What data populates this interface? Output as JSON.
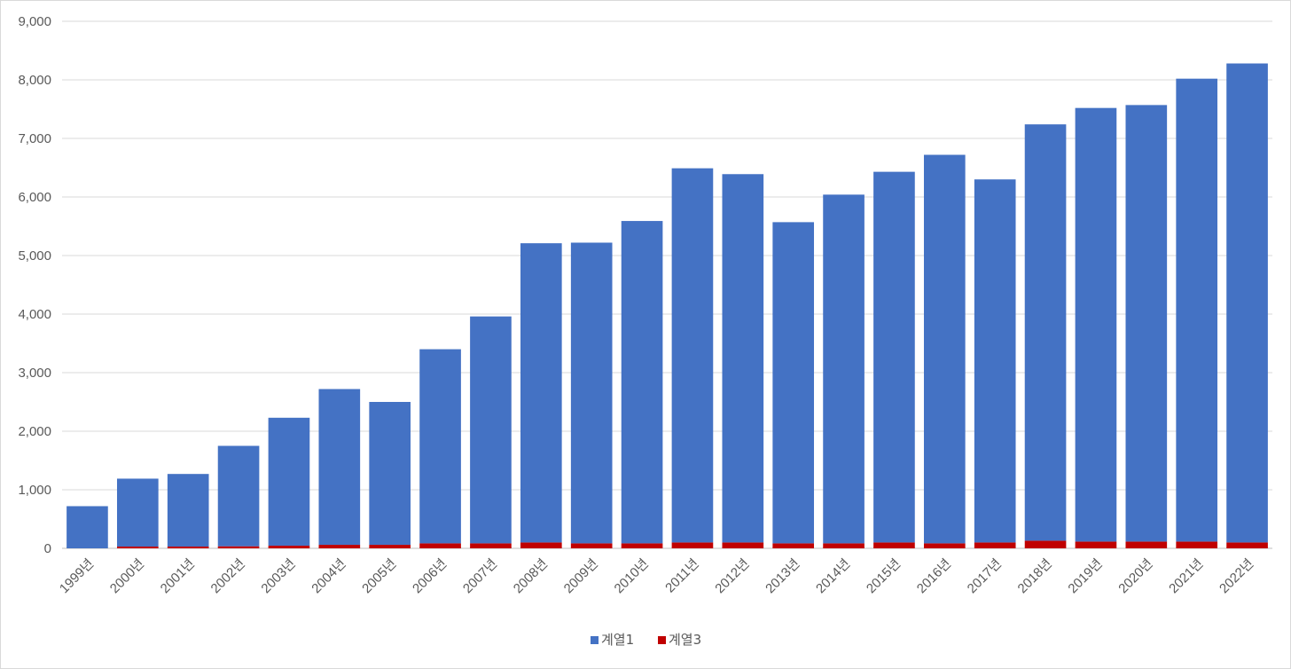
{
  "chart_data": {
    "type": "bar",
    "stacked": true,
    "title": "",
    "xlabel": "",
    "ylabel": "",
    "ylim": [
      0,
      9000
    ],
    "yticks": [
      0,
      1000,
      2000,
      3000,
      4000,
      5000,
      6000,
      7000,
      8000,
      9000
    ],
    "ytick_labels": [
      "0",
      "1,000",
      "2,000",
      "3,000",
      "4,000",
      "5,000",
      "6,000",
      "7,000",
      "8,000",
      "9,000"
    ],
    "grid": true,
    "legend_position": "bottom",
    "categories": [
      "1999년",
      "2000년",
      "2001년",
      "2002년",
      "2003년",
      "2004년",
      "2005년",
      "2006년",
      "2007년",
      "2008년",
      "2009년",
      "2010년",
      "2011년",
      "2012년",
      "2013년",
      "2014년",
      "2015년",
      "2016년",
      "2017년",
      "2018년",
      "2019년",
      "2020년",
      "2021년",
      "2022년"
    ],
    "series": [
      {
        "name": "계열3",
        "color": "#c00000",
        "values": [
          0,
          30,
          30,
          35,
          45,
          60,
          60,
          85,
          85,
          100,
          85,
          85,
          100,
          100,
          85,
          85,
          100,
          85,
          100,
          130,
          115,
          115,
          115,
          100
        ]
      },
      {
        "name": "계열1",
        "color": "#4472c4",
        "values": [
          720,
          1160,
          1240,
          1715,
          2185,
          2660,
          2440,
          3315,
          3875,
          5110,
          5135,
          5505,
          6390,
          6290,
          5485,
          5955,
          6330,
          6635,
          6200,
          7110,
          7405,
          7455,
          7905,
          8180
        ]
      }
    ],
    "legend_order": [
      "계열1",
      "계열3"
    ]
  }
}
